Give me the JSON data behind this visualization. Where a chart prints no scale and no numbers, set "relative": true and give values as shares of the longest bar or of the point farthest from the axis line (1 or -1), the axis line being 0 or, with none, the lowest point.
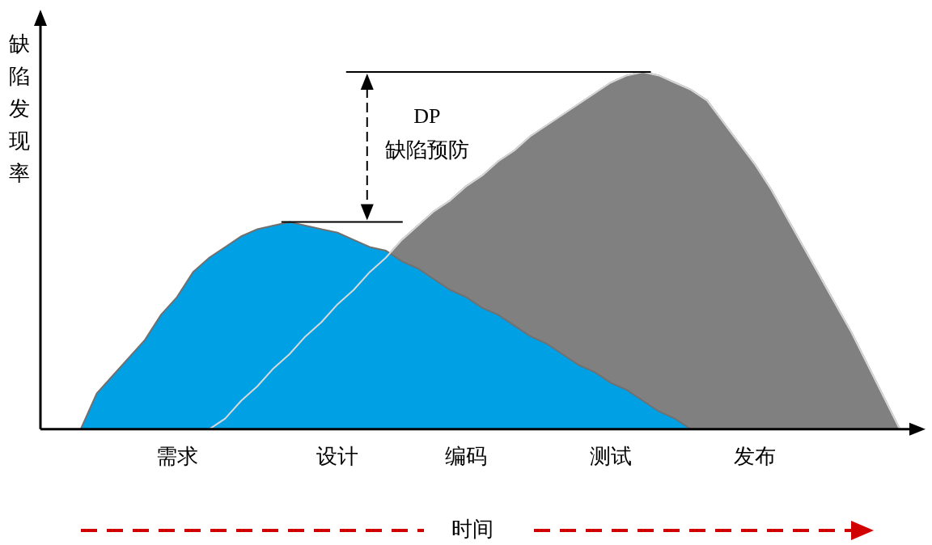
{
  "chart_data": {
    "type": "area",
    "relative": true,
    "ylabel": "缺陷发现率",
    "categories": [
      null,
      null,
      null,
      null,
      null,
      null,
      null,
      null,
      "需求",
      null,
      null,
      null,
      null,
      null,
      null,
      null,
      null,
      null,
      "设计",
      null,
      null,
      null,
      null,
      null,
      null,
      null,
      "编码",
      null,
      null,
      null,
      null,
      null,
      null,
      null,
      null,
      "测试",
      null,
      null,
      null,
      null,
      null,
      null,
      null,
      null,
      "发布",
      null,
      null,
      null,
      null,
      null,
      null,
      null,
      null,
      null,
      null
    ],
    "series": [
      {
        "color": "#00a0e4",
        "values": [
          null,
          null,
          0,
          0.1,
          0.15,
          0.2,
          0.25,
          0.32,
          0.37,
          0.44,
          0.48,
          0.51,
          0.54,
          0.56,
          0.57,
          0.58,
          0.57,
          0.56,
          0.55,
          0.53,
          0.51,
          0.5,
          0.47,
          0.45,
          0.42,
          0.39,
          0.37,
          0.34,
          0.32,
          0.29,
          0.26,
          0.24,
          0.21,
          0.18,
          0.16,
          0.13,
          0.11,
          0.08,
          0.05,
          0.03,
          0,
          null,
          null,
          null,
          null,
          null,
          null,
          null,
          null,
          null,
          null,
          null,
          null,
          null,
          null
        ]
      },
      {
        "color": "#808080",
        "values": [
          null,
          null,
          null,
          null,
          null,
          null,
          null,
          null,
          null,
          null,
          0,
          0.03,
          0.08,
          0.12,
          0.17,
          0.21,
          0.26,
          0.3,
          0.35,
          0.39,
          0.44,
          0.48,
          0.53,
          0.57,
          0.61,
          0.64,
          0.68,
          0.71,
          0.75,
          0.78,
          0.82,
          0.85,
          0.88,
          0.91,
          0.94,
          0.97,
          0.99,
          1,
          0.99,
          0.97,
          0.95,
          0.92,
          0.86,
          0.8,
          0.74,
          0.67,
          0.59,
          0.51,
          0.43,
          0.35,
          0.27,
          0.18,
          0.09,
          0,
          null
        ]
      }
    ],
    "annotations": [
      "DP",
      "缺陷预防",
      "时间"
    ]
  }
}
